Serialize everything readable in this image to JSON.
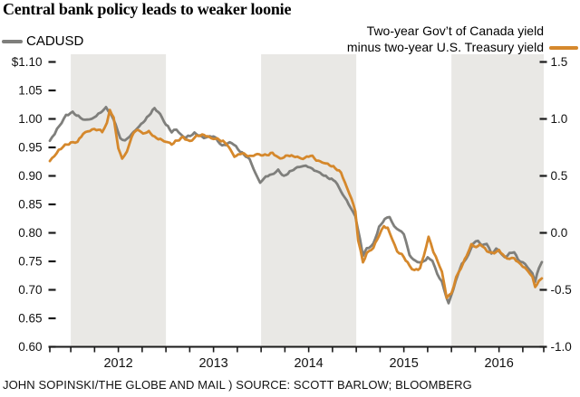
{
  "title": "Central bank policy leads to weaker loonie",
  "legend": {
    "left_series_label": "CADUSD",
    "right_series_label_line1": "Two-year Gov’t of Canada yield",
    "right_series_label_line2": "minus two-year U.S. Treasury yield"
  },
  "footer": "JOHN SOPINSKI/THE GLOBE AND MAIL ) SOURCE: SCOTT BARLOW; BLOOMBERG",
  "colors": {
    "cadusd_line": "#7f7f7c",
    "spread_line": "#d5882c",
    "band_fill": "#e9e8e5",
    "axis": "#1a1a1a",
    "tick_label": "#111111",
    "background": "#ffffff"
  },
  "chart_data": {
    "type": "line",
    "x_unit": "decimal_year",
    "x_domain": [
      2011.78,
      2016.97
    ],
    "x_quarter_tick_step": 0.25,
    "shaded_bands_years": [
      [
        2012,
        2013
      ],
      [
        2014,
        2015
      ],
      [
        2016,
        2016.97
      ]
    ],
    "x_year_labels": [
      {
        "label": "2012",
        "year": 2012.5
      },
      {
        "label": "2013",
        "year": 2013.5
      },
      {
        "label": "2014",
        "year": 2014.5
      },
      {
        "label": "2015",
        "year": 2015.5
      },
      {
        "label": "2016",
        "year": 2016.5
      }
    ],
    "left_axis": {
      "range": [
        0.6,
        1.1
      ],
      "tick_step": 0.05,
      "ticks": [
        "$1.10",
        "1.05",
        "1.00",
        "0.95",
        "0.90",
        "0.85",
        "0.80",
        "0.75",
        "0.70",
        "0.65",
        "0.60"
      ]
    },
    "right_axis": {
      "range": [
        -1.0,
        1.5
      ],
      "tick_step": 0.5,
      "ticks": [
        "1.5",
        "1.0",
        "0.5",
        "0.0",
        "-0.5",
        "-1.0"
      ]
    },
    "series": [
      {
        "name": "CADUSD",
        "axis": "left",
        "color_key": "cadusd_line",
        "points": [
          [
            2011.78,
            0.962
          ],
          [
            2011.83,
            0.974
          ],
          [
            2011.88,
            0.988
          ],
          [
            2011.95,
            1.006
          ],
          [
            2012.02,
            1.012
          ],
          [
            2012.08,
            1.004
          ],
          [
            2012.15,
            0.998
          ],
          [
            2012.22,
            1.0
          ],
          [
            2012.29,
            1.008
          ],
          [
            2012.37,
            1.02
          ],
          [
            2012.42,
            1.008
          ],
          [
            2012.47,
            0.992
          ],
          [
            2012.52,
            0.965
          ],
          [
            2012.57,
            0.962
          ],
          [
            2012.64,
            0.973
          ],
          [
            2012.7,
            0.984
          ],
          [
            2012.76,
            0.994
          ],
          [
            2012.82,
            1.006
          ],
          [
            2012.88,
            1.019
          ],
          [
            2012.94,
            1.008
          ],
          [
            2013.0,
            0.99
          ],
          [
            2013.06,
            0.978
          ],
          [
            2013.11,
            0.981
          ],
          [
            2013.16,
            0.972
          ],
          [
            2013.21,
            0.967
          ],
          [
            2013.3,
            0.975
          ],
          [
            2013.4,
            0.967
          ],
          [
            2013.5,
            0.97
          ],
          [
            2013.59,
            0.953
          ],
          [
            2013.69,
            0.959
          ],
          [
            2013.78,
            0.943
          ],
          [
            2013.88,
            0.929
          ],
          [
            2013.94,
            0.905
          ],
          [
            2013.99,
            0.888
          ],
          [
            2014.05,
            0.899
          ],
          [
            2014.11,
            0.902
          ],
          [
            2014.18,
            0.91
          ],
          [
            2014.24,
            0.899
          ],
          [
            2014.3,
            0.907
          ],
          [
            2014.38,
            0.915
          ],
          [
            2014.47,
            0.918
          ],
          [
            2014.54,
            0.912
          ],
          [
            2014.62,
            0.905
          ],
          [
            2014.7,
            0.897
          ],
          [
            2014.78,
            0.891
          ],
          [
            2014.86,
            0.867
          ],
          [
            2014.92,
            0.851
          ],
          [
            2014.99,
            0.829
          ],
          [
            2015.04,
            0.788
          ],
          [
            2015.07,
            0.761
          ],
          [
            2015.11,
            0.772
          ],
          [
            2015.18,
            0.78
          ],
          [
            2015.24,
            0.81
          ],
          [
            2015.3,
            0.824
          ],
          [
            2015.35,
            0.829
          ],
          [
            2015.4,
            0.81
          ],
          [
            2015.45,
            0.805
          ],
          [
            2015.5,
            0.799
          ],
          [
            2015.56,
            0.761
          ],
          [
            2015.62,
            0.75
          ],
          [
            2015.69,
            0.748
          ],
          [
            2015.75,
            0.756
          ],
          [
            2015.8,
            0.751
          ],
          [
            2015.85,
            0.729
          ],
          [
            2015.9,
            0.713
          ],
          [
            2015.95,
            0.686
          ],
          [
            2015.97,
            0.676
          ],
          [
            2016.02,
            0.701
          ],
          [
            2016.07,
            0.729
          ],
          [
            2016.11,
            0.745
          ],
          [
            2016.18,
            0.761
          ],
          [
            2016.23,
            0.783
          ],
          [
            2016.28,
            0.786
          ],
          [
            2016.32,
            0.778
          ],
          [
            2016.37,
            0.781
          ],
          [
            2016.42,
            0.764
          ],
          [
            2016.47,
            0.772
          ],
          [
            2016.51,
            0.767
          ],
          [
            2016.56,
            0.756
          ],
          [
            2016.61,
            0.764
          ],
          [
            2016.66,
            0.767
          ],
          [
            2016.7,
            0.753
          ],
          [
            2016.75,
            0.748
          ],
          [
            2016.8,
            0.74
          ],
          [
            2016.85,
            0.729
          ],
          [
            2016.88,
            0.715
          ],
          [
            2016.92,
            0.738
          ],
          [
            2016.95,
            0.75
          ]
        ]
      },
      {
        "name": "Two-year Gov’t of Canada yield minus two-year U.S. Treasury yield",
        "axis": "right",
        "color_key": "spread_line",
        "points": [
          [
            2011.78,
            0.63
          ],
          [
            2011.85,
            0.7
          ],
          [
            2011.92,
            0.76
          ],
          [
            2012.0,
            0.79
          ],
          [
            2012.07,
            0.8
          ],
          [
            2012.13,
            0.87
          ],
          [
            2012.2,
            0.9
          ],
          [
            2012.27,
            0.91
          ],
          [
            2012.33,
            0.89
          ],
          [
            2012.38,
            0.96
          ],
          [
            2012.41,
            1.08
          ],
          [
            2012.45,
            1.01
          ],
          [
            2012.5,
            0.74
          ],
          [
            2012.54,
            0.65
          ],
          [
            2012.59,
            0.71
          ],
          [
            2012.64,
            0.85
          ],
          [
            2012.7,
            0.91
          ],
          [
            2012.76,
            0.87
          ],
          [
            2012.82,
            0.89
          ],
          [
            2012.88,
            0.84
          ],
          [
            2012.94,
            0.82
          ],
          [
            2013.0,
            0.8
          ],
          [
            2013.06,
            0.78
          ],
          [
            2013.12,
            0.81
          ],
          [
            2013.18,
            0.84
          ],
          [
            2013.25,
            0.8
          ],
          [
            2013.32,
            0.85
          ],
          [
            2013.4,
            0.86
          ],
          [
            2013.48,
            0.83
          ],
          [
            2013.56,
            0.82
          ],
          [
            2013.64,
            0.78
          ],
          [
            2013.72,
            0.67
          ],
          [
            2013.8,
            0.7
          ],
          [
            2013.88,
            0.67
          ],
          [
            2013.96,
            0.69
          ],
          [
            2014.04,
            0.68
          ],
          [
            2014.12,
            0.7
          ],
          [
            2014.2,
            0.65
          ],
          [
            2014.28,
            0.68
          ],
          [
            2014.36,
            0.67
          ],
          [
            2014.44,
            0.65
          ],
          [
            2014.52,
            0.68
          ],
          [
            2014.6,
            0.63
          ],
          [
            2014.68,
            0.61
          ],
          [
            2014.76,
            0.58
          ],
          [
            2014.84,
            0.53
          ],
          [
            2014.9,
            0.4
          ],
          [
            2014.95,
            0.3
          ],
          [
            2014.99,
            0.19
          ],
          [
            2015.02,
            -0.06
          ],
          [
            2015.07,
            -0.26
          ],
          [
            2015.11,
            -0.18
          ],
          [
            2015.18,
            -0.13
          ],
          [
            2015.24,
            -0.02
          ],
          [
            2015.29,
            0.06
          ],
          [
            2015.33,
            0.04
          ],
          [
            2015.38,
            -0.06
          ],
          [
            2015.43,
            -0.16
          ],
          [
            2015.5,
            -0.21
          ],
          [
            2015.56,
            -0.29
          ],
          [
            2015.61,
            -0.33
          ],
          [
            2015.67,
            -0.31
          ],
          [
            2015.71,
            -0.2
          ],
          [
            2015.76,
            -0.04
          ],
          [
            2015.81,
            -0.16
          ],
          [
            2015.86,
            -0.26
          ],
          [
            2015.9,
            -0.34
          ],
          [
            2015.95,
            -0.57
          ],
          [
            2016.0,
            -0.53
          ],
          [
            2016.05,
            -0.39
          ],
          [
            2016.1,
            -0.31
          ],
          [
            2016.16,
            -0.2
          ],
          [
            2016.21,
            -0.1
          ],
          [
            2016.26,
            -0.13
          ],
          [
            2016.3,
            -0.1
          ],
          [
            2016.35,
            -0.14
          ],
          [
            2016.4,
            -0.17
          ],
          [
            2016.45,
            -0.18
          ],
          [
            2016.5,
            -0.15
          ],
          [
            2016.56,
            -0.21
          ],
          [
            2016.61,
            -0.23
          ],
          [
            2016.66,
            -0.22
          ],
          [
            2016.7,
            -0.26
          ],
          [
            2016.75,
            -0.29
          ],
          [
            2016.8,
            -0.33
          ],
          [
            2016.85,
            -0.39
          ],
          [
            2016.88,
            -0.47
          ],
          [
            2016.92,
            -0.43
          ],
          [
            2016.95,
            -0.4
          ]
        ]
      }
    ]
  }
}
